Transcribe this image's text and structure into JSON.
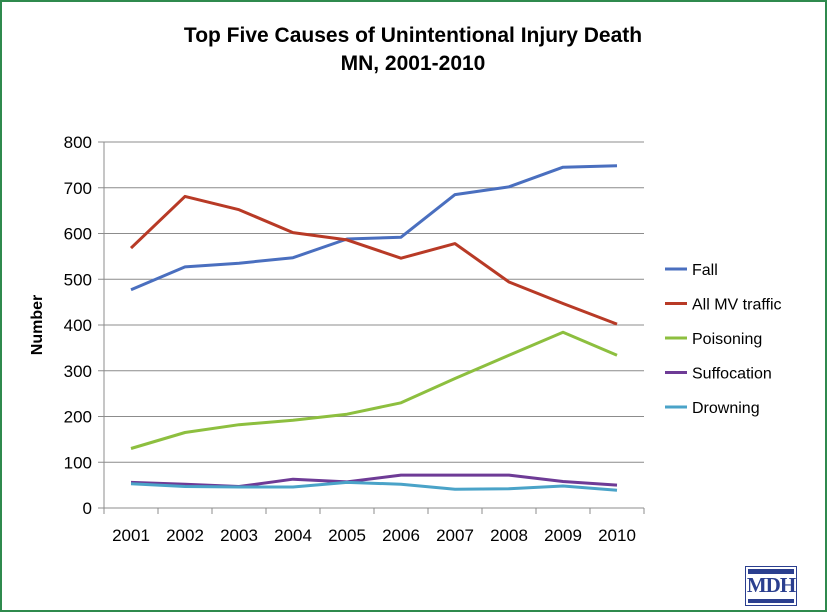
{
  "chart_data": {
    "type": "line",
    "title": "Top Five Causes of Unintentional Injury Death",
    "subtitle": "MN, 2001-2010",
    "xlabel": "",
    "ylabel": "Number",
    "x": [
      "2001",
      "2002",
      "2003",
      "2004",
      "2005",
      "2006",
      "2007",
      "2008",
      "2009",
      "2010"
    ],
    "ylim": [
      0,
      800
    ],
    "yticks": [
      "0",
      "100",
      "200",
      "300",
      "400",
      "500",
      "600",
      "700",
      "800"
    ],
    "grid": true,
    "legend_position": "right",
    "series": [
      {
        "name": "Fall",
        "color": "#4a6fbf",
        "values": [
          477,
          527,
          535,
          547,
          588,
          592,
          685,
          702,
          745,
          748
        ]
      },
      {
        "name": "All MV traffic",
        "color": "#b83a26",
        "values": [
          568,
          681,
          652,
          602,
          586,
          546,
          578,
          494,
          447,
          402
        ]
      },
      {
        "name": "Poisoning",
        "color": "#8dbf3f",
        "values": [
          130,
          165,
          182,
          192,
          205,
          230,
          283,
          334,
          384,
          334
        ]
      },
      {
        "name": "Suffocation",
        "color": "#6e3b96",
        "values": [
          56,
          52,
          47,
          63,
          57,
          72,
          72,
          72,
          58,
          50
        ]
      },
      {
        "name": "Drowning",
        "color": "#4aa3c8",
        "values": [
          53,
          47,
          46,
          46,
          56,
          52,
          41,
          42,
          48,
          39
        ]
      }
    ]
  },
  "logo": {
    "text": "MDH"
  }
}
